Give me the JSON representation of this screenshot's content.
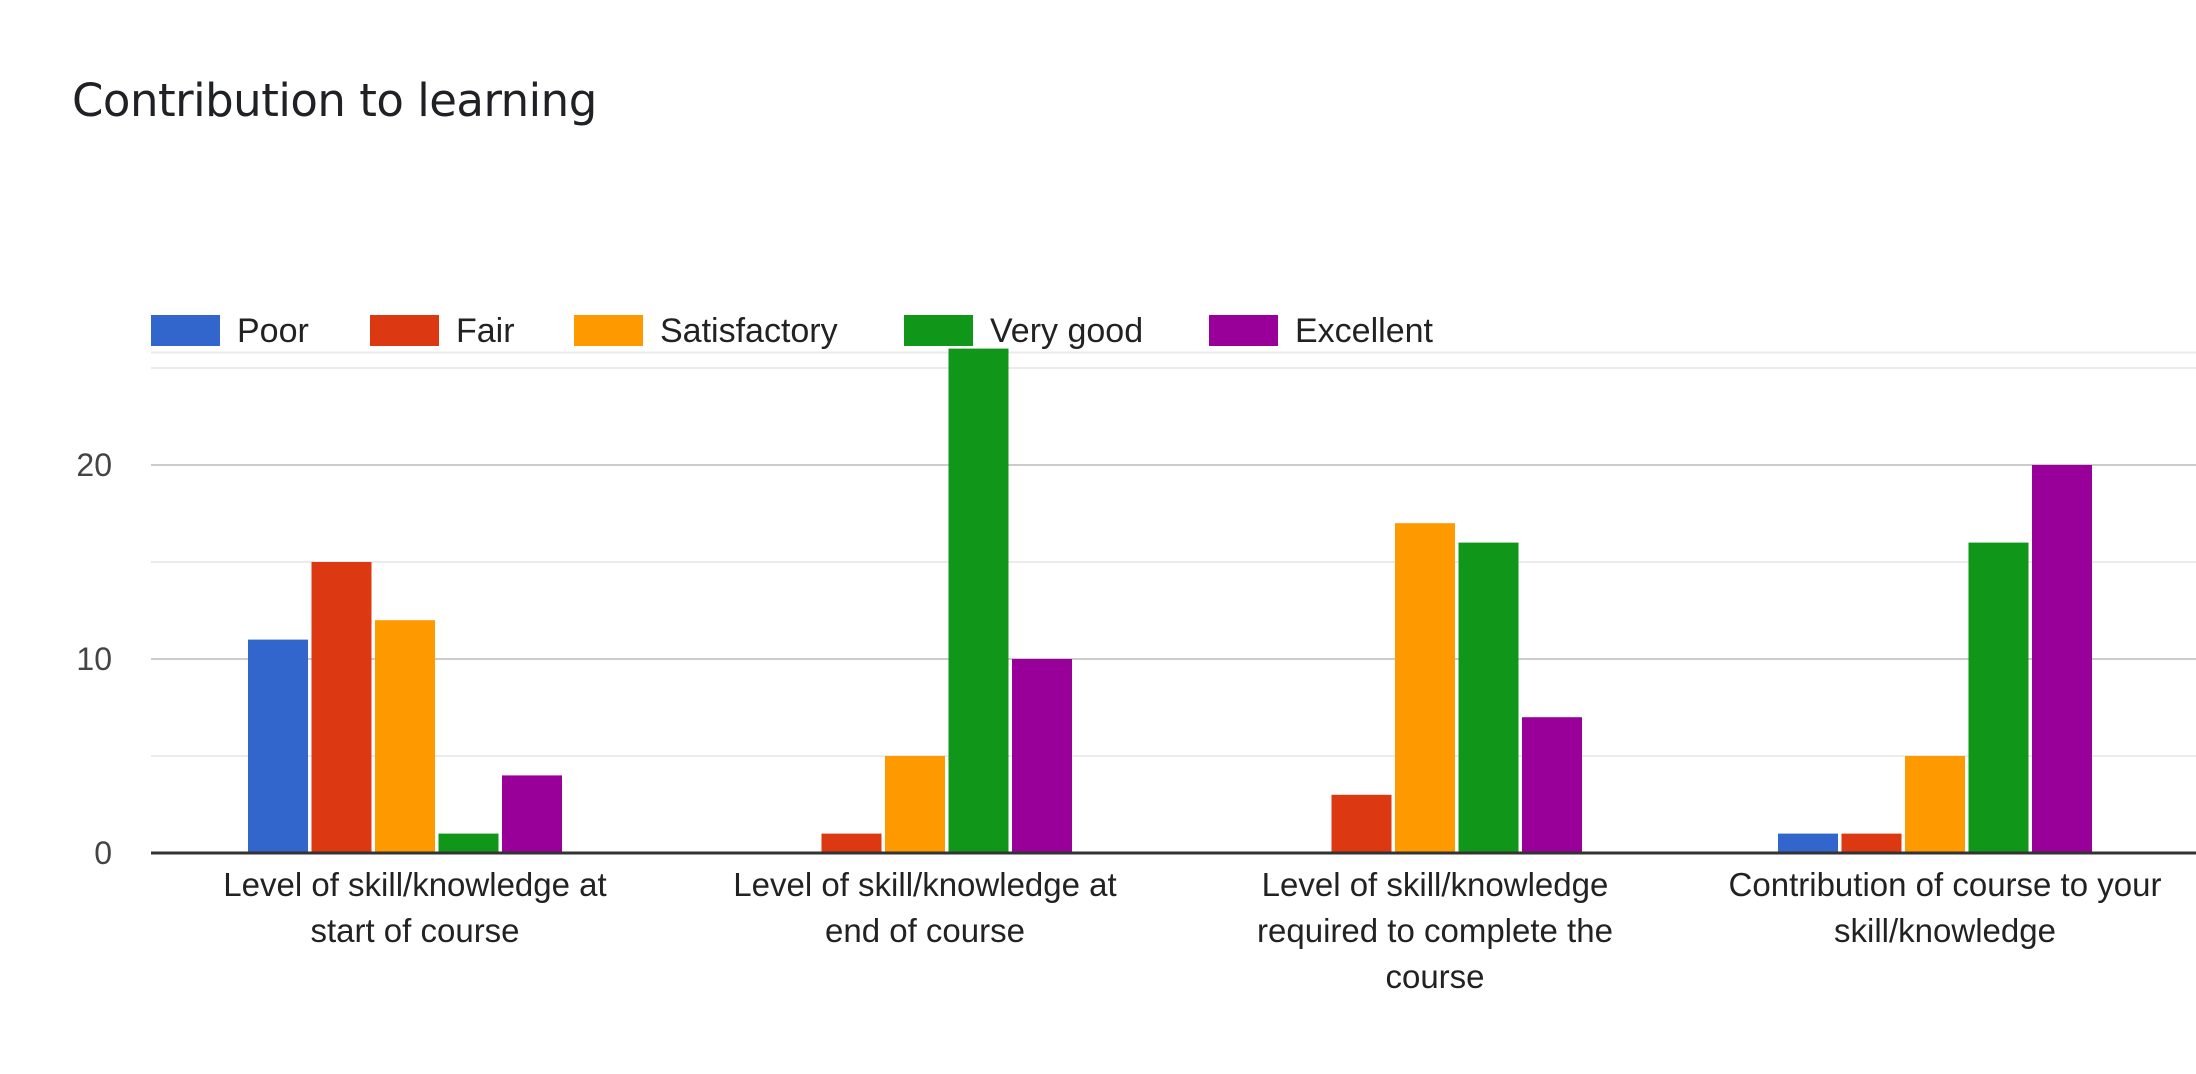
{
  "chart_data": {
    "type": "bar",
    "title": "Contribution to learning",
    "xlabel": "",
    "ylabel": "",
    "ylim": [
      0,
      25.8
    ],
    "yticks": [
      0,
      10,
      20
    ],
    "legend_position": "top-left",
    "categories": [
      [
        "Level of skill/knowledge at",
        "start of course"
      ],
      [
        "Level of skill/knowledge at",
        "end of course"
      ],
      [
        "Level of skill/knowledge",
        "required to complete the",
        "course"
      ],
      [
        "Contribution of course to your",
        "skill/knowledge"
      ]
    ],
    "series": [
      {
        "name": "Poor",
        "color": "#3366cc",
        "values": [
          11,
          0,
          0,
          1
        ]
      },
      {
        "name": "Fair",
        "color": "#dc3912",
        "values": [
          15,
          1,
          3,
          1
        ]
      },
      {
        "name": "Satisfactory",
        "color": "#ff9900",
        "values": [
          12,
          5,
          17,
          5
        ]
      },
      {
        "name": "Very good",
        "color": "#109618",
        "values": [
          1,
          26,
          16,
          16
        ]
      },
      {
        "name": "Excellent",
        "color": "#990099",
        "values": [
          4,
          10,
          7,
          20
        ]
      }
    ]
  }
}
